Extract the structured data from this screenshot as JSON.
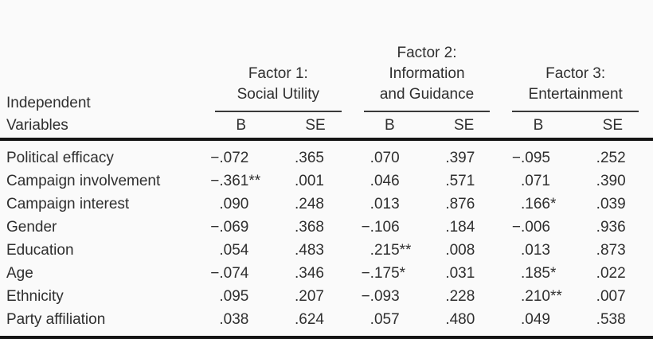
{
  "page": {
    "background_color": "#fafafa",
    "text_color": "#2f2f2f",
    "rule_color": "#141414"
  },
  "table": {
    "stub_head": {
      "line1": "Independent",
      "line2": "Variables"
    },
    "factors": [
      {
        "lines": [
          "Factor 1:",
          "Social Utility"
        ],
        "sub_columns": [
          "B",
          "SE"
        ]
      },
      {
        "lines": [
          "Factor 2:",
          "Information",
          "and Guidance"
        ],
        "sub_columns": [
          "B",
          "SE"
        ]
      },
      {
        "lines": [
          "Factor 3:",
          "Entertainment"
        ],
        "sub_columns": [
          "B",
          "SE"
        ]
      }
    ],
    "rows": [
      {
        "label": "Political efficacy",
        "values": [
          "−.072",
          ".365",
          ".070",
          ".397",
          "−.095",
          ".252"
        ]
      },
      {
        "label": "Campaign involvement",
        "values": [
          "−.361**",
          ".001",
          ".046",
          ".571",
          ".071",
          ".390"
        ]
      },
      {
        "label": "Campaign interest",
        "values": [
          ".090",
          ".248",
          ".013",
          ".876",
          ".166*",
          ".039"
        ]
      },
      {
        "label": "Gender",
        "values": [
          "−.069",
          ".368",
          "−.106",
          ".184",
          "−.006",
          ".936"
        ]
      },
      {
        "label": "Education",
        "values": [
          ".054",
          ".483",
          ".215**",
          ".008",
          ".013",
          ".873"
        ]
      },
      {
        "label": "Age",
        "values": [
          "−.074",
          ".346",
          "−.175*",
          ".031",
          ".185*",
          ".022"
        ]
      },
      {
        "label": "Ethnicity",
        "values": [
          ".095",
          ".207",
          "−.093",
          ".228",
          ".210**",
          ".007"
        ]
      },
      {
        "label": "Party affiliation",
        "values": [
          ".038",
          ".624",
          ".057",
          ".480",
          ".049",
          ".538"
        ]
      }
    ]
  }
}
